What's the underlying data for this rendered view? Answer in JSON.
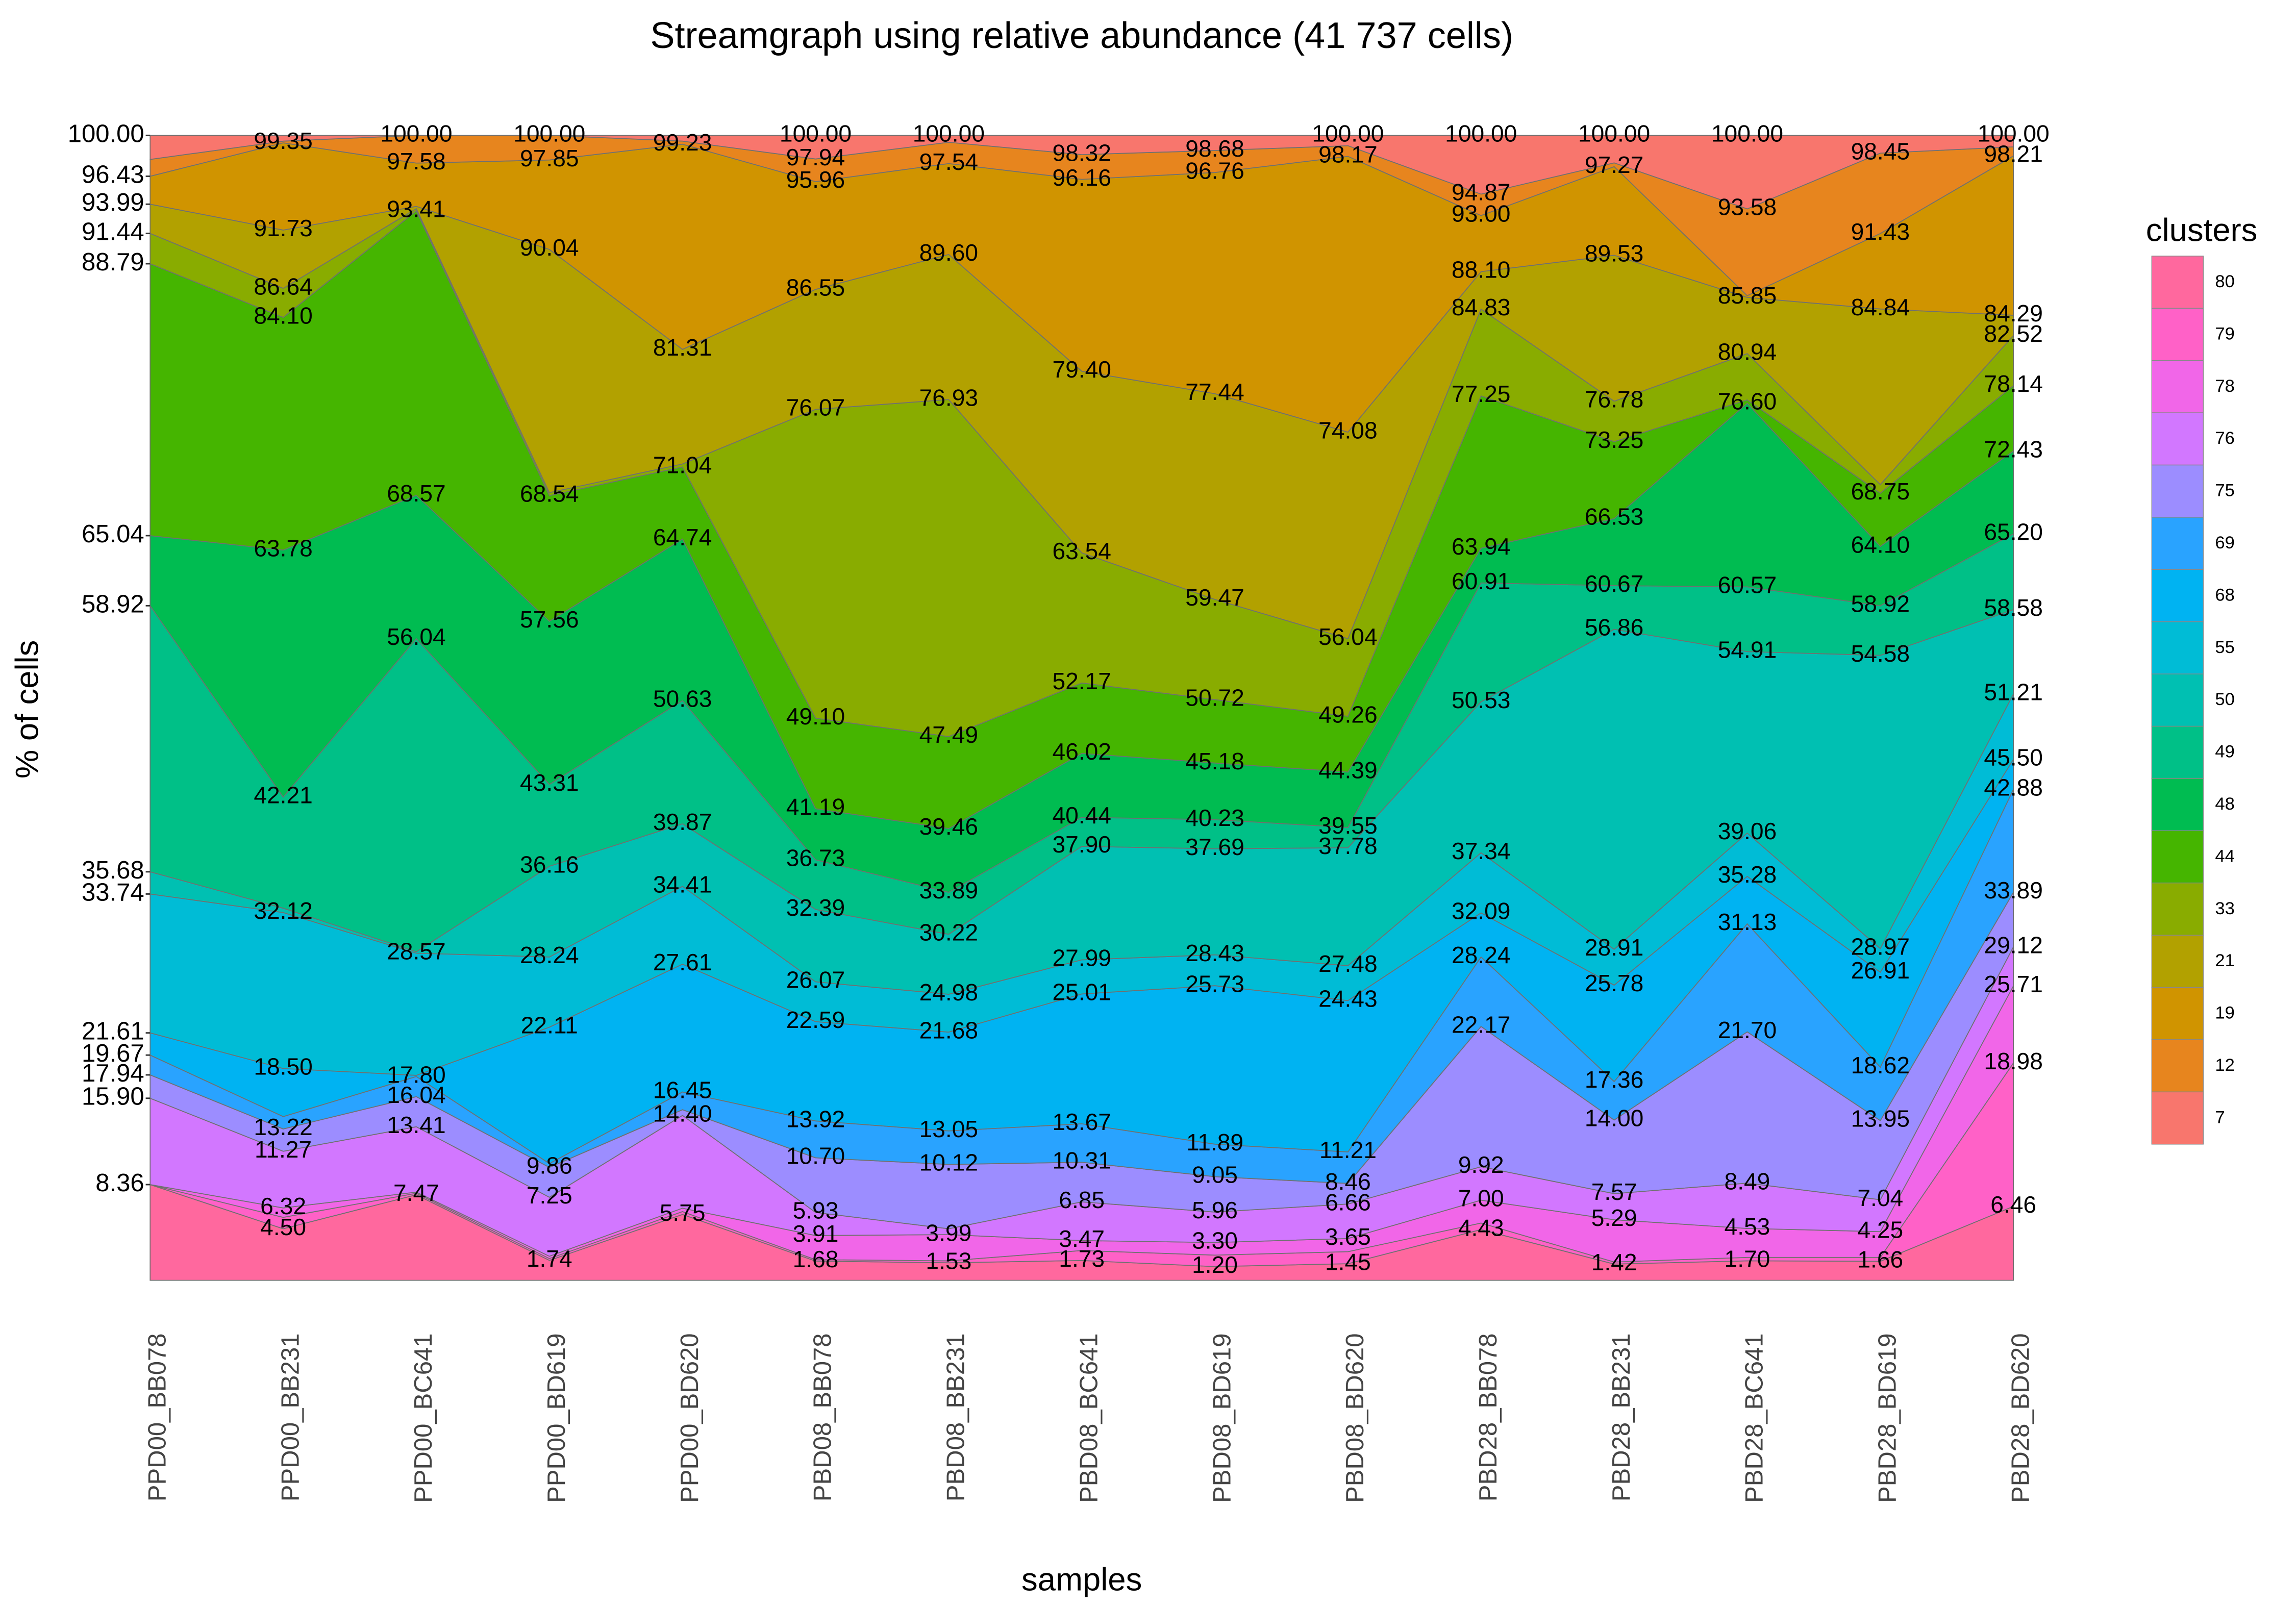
{
  "chart_data": {
    "type": "streamgraph",
    "title": "Streamgraph using relative abundance (41 737 cells)",
    "xlabel": "samples",
    "ylabel": "% of cells",
    "legend_title": "clusters",
    "categories": [
      "PPD00_BB078",
      "PPD00_BB231",
      "PPD00_BC641",
      "PPD00_BD619",
      "PPD00_BD620",
      "PBD08_BB078",
      "PBD08_BB231",
      "PBD08_BC641",
      "PBD08_BD619",
      "PBD08_BD620",
      "PBD28_BB078",
      "PBD28_BB231",
      "PBD28_BC641",
      "PBD28_BD619",
      "PBD28_BD620"
    ],
    "ylim": [
      0,
      100
    ],
    "yticks": [
      8.36,
      {
        "value": 15.9,
        "label": "15.90"
      },
      17.94,
      19.67,
      21.61,
      33.74,
      35.68,
      58.92,
      65.04,
      88.79,
      91.44,
      93.99,
      96.43,
      {
        "value": 100,
        "label": "100.00"
      }
    ],
    "series": [
      {
        "name": "80",
        "color": "#FF689E",
        "values": [
          8.36,
          4.5,
          7.47,
          1.74,
          5.75,
          1.68,
          1.53,
          1.73,
          1.2,
          1.45,
          4.43,
          1.42,
          1.7,
          1.66,
          6.46
        ],
        "value_labels": [
          null,
          "4.50",
          "7.47",
          "1.74",
          "5.75",
          "1.68",
          "1.53",
          "1.73",
          "1.20",
          "1.45",
          "4.43",
          "1.42",
          "1.70",
          "1.66",
          "6.46"
        ]
      },
      {
        "name": "79",
        "color": "#FF61C7",
        "values": [
          8.36,
          5.5,
          7.6,
          1.9,
          6.0,
          1.8,
          1.7,
          2.6,
          2.2,
          2.5,
          5.0,
          1.6,
          2.0,
          2.0,
          18.98
        ],
        "value_labels": [
          null,
          null,
          null,
          null,
          null,
          null,
          null,
          null,
          null,
          null,
          null,
          null,
          null,
          null,
          "18.98"
        ]
      },
      {
        "name": "78",
        "color": "#F166E8",
        "values": [
          8.36,
          6.32,
          7.7,
          2.1,
          6.3,
          3.91,
          3.99,
          3.47,
          3.3,
          3.65,
          7.0,
          5.29,
          4.53,
          4.25,
          25.71
        ],
        "value_labels": [
          null,
          "6.32",
          null,
          null,
          null,
          "3.91",
          "3.99",
          "3.47",
          "3.30",
          "3.65",
          "7.00",
          "5.29",
          "4.53",
          "4.25",
          "25.71"
        ]
      },
      {
        "name": "76",
        "color": "#D277FF",
        "values": [
          15.9,
          11.27,
          13.41,
          7.25,
          14.4,
          5.93,
          4.5,
          6.85,
          5.96,
          6.66,
          9.92,
          7.57,
          8.49,
          7.04,
          29.12
        ],
        "value_labels": [
          null,
          "11.27",
          "13.41",
          "7.25",
          "14.40",
          "5.93",
          null,
          "6.85",
          "5.96",
          "6.66",
          "9.92",
          "7.57",
          "8.49",
          "7.04",
          "29.12"
        ]
      },
      {
        "name": "75",
        "color": "#9C8DFF",
        "values": [
          17.94,
          13.22,
          16.04,
          9.86,
          14.9,
          10.7,
          10.12,
          10.31,
          9.05,
          8.46,
          22.17,
          14.0,
          21.7,
          13.95,
          33.89
        ],
        "value_labels": [
          null,
          "13.22",
          "16.04",
          "9.86",
          null,
          "10.70",
          "10.12",
          "10.31",
          "9.05",
          "8.46",
          "22.17",
          "14.00",
          "21.70",
          "13.95",
          "33.89"
        ]
      },
      {
        "name": "69",
        "color": "#29A3FF",
        "values": [
          19.67,
          14.3,
          17.8,
          10.2,
          16.45,
          13.92,
          13.05,
          13.67,
          11.89,
          11.21,
          28.24,
          17.36,
          31.13,
          18.62,
          42.88
        ],
        "value_labels": [
          null,
          null,
          "17.80",
          null,
          "16.45",
          "13.92",
          "13.05",
          "13.67",
          "11.89",
          "11.21",
          "28.24",
          "17.36",
          "31.13",
          "18.62",
          "42.88"
        ]
      },
      {
        "name": "68",
        "color": "#00B3F2",
        "values": [
          21.61,
          18.5,
          17.9,
          22.11,
          27.61,
          22.59,
          21.68,
          25.01,
          25.73,
          24.43,
          32.09,
          25.78,
          35.28,
          26.91,
          45.5
        ],
        "value_labels": [
          null,
          "18.50",
          null,
          "22.11",
          "27.61",
          "22.59",
          "21.68",
          "25.01",
          "25.73",
          "24.43",
          "32.09",
          "25.78",
          "35.28",
          "26.91",
          "45.50"
        ]
      },
      {
        "name": "55",
        "color": "#00BCD6",
        "values": [
          33.74,
          32.12,
          28.57,
          28.24,
          34.41,
          26.07,
          24.98,
          27.99,
          28.43,
          27.48,
          37.34,
          28.91,
          39.06,
          28.97,
          51.21
        ],
        "value_labels": [
          null,
          "32.12",
          "28.57",
          "28.24",
          "34.41",
          "26.07",
          "24.98",
          "27.99",
          "28.43",
          "27.48",
          "37.34",
          "28.91",
          "39.06",
          "28.97",
          "51.21"
        ]
      },
      {
        "name": "50",
        "color": "#00C0B2",
        "values": [
          35.68,
          32.5,
          28.7,
          36.16,
          39.87,
          32.39,
          30.22,
          37.9,
          37.69,
          37.78,
          50.53,
          56.86,
          54.91,
          54.58,
          58.58
        ],
        "value_labels": [
          null,
          null,
          null,
          "36.16",
          "39.87",
          "32.39",
          "30.22",
          "37.90",
          "37.69",
          "37.78",
          "50.53",
          "56.86",
          "54.91",
          "54.58",
          "58.58"
        ]
      },
      {
        "name": "49",
        "color": "#00C087",
        "values": [
          58.92,
          42.21,
          56.04,
          43.31,
          50.63,
          36.73,
          33.89,
          40.44,
          40.23,
          39.55,
          60.91,
          60.67,
          60.57,
          58.92,
          65.2
        ],
        "value_labels": [
          null,
          "42.21",
          "56.04",
          "43.31",
          "50.63",
          "36.73",
          "33.89",
          "40.44",
          "40.23",
          "39.55",
          "60.91",
          "60.67",
          "60.57",
          "58.92",
          "65.20"
        ]
      },
      {
        "name": "48",
        "color": "#00BC51",
        "values": [
          65.04,
          63.78,
          68.57,
          57.56,
          64.74,
          41.19,
          39.46,
          46.02,
          45.18,
          44.39,
          63.94,
          66.53,
          76.6,
          64.1,
          72.43
        ],
        "value_labels": [
          null,
          "63.78",
          "68.57",
          "57.56",
          "64.74",
          "41.19",
          "39.46",
          "46.02",
          "45.18",
          "44.39",
          "63.94",
          "66.53",
          "76.60",
          "64.10",
          "72.43"
        ]
      },
      {
        "name": "44",
        "color": "#45B500",
        "values": [
          88.79,
          84.1,
          93.41,
          68.54,
          71.04,
          49.1,
          47.49,
          52.17,
          50.72,
          49.26,
          77.25,
          73.25,
          76.9,
          68.75,
          78.14
        ],
        "value_labels": [
          null,
          "84.10",
          "93.41",
          "68.54",
          "71.04",
          "49.10",
          "47.49",
          "52.17",
          "50.72",
          "49.26",
          "77.25",
          "73.25",
          null,
          "68.75",
          "78.14"
        ]
      },
      {
        "name": "33",
        "color": "#89AC00",
        "values": [
          91.44,
          86.64,
          93.6,
          68.8,
          71.3,
          76.07,
          76.93,
          63.54,
          59.47,
          56.04,
          84.83,
          76.78,
          80.94,
          69.5,
          82.52
        ],
        "value_labels": [
          null,
          "86.64",
          null,
          null,
          null,
          "76.07",
          "76.93",
          "63.54",
          "59.47",
          "56.04",
          "84.83",
          "76.78",
          "80.94",
          null,
          "82.52"
        ]
      },
      {
        "name": "21",
        "color": "#B2A100",
        "values": [
          93.99,
          91.73,
          93.8,
          90.04,
          81.31,
          86.55,
          89.6,
          79.4,
          77.44,
          74.08,
          88.1,
          89.53,
          85.85,
          84.84,
          84.29
        ],
        "value_labels": [
          null,
          "91.73",
          null,
          "90.04",
          "81.31",
          "86.55",
          "89.60",
          "79.40",
          "77.44",
          "74.08",
          "88.10",
          "89.53",
          "85.85",
          "84.84",
          "84.29"
        ]
      },
      {
        "name": "19",
        "color": "#D09400",
        "values": [
          96.43,
          99.35,
          97.58,
          97.85,
          99.23,
          95.96,
          97.54,
          96.16,
          96.76,
          98.17,
          93.0,
          97.27,
          86.0,
          91.43,
          98.21
        ],
        "value_labels": [
          null,
          "99.35",
          "97.58",
          "97.85",
          "99.23",
          "95.96",
          "97.54",
          "96.16",
          "96.76",
          "98.17",
          "93.00",
          "97.27",
          null,
          "91.43",
          "98.21"
        ]
      },
      {
        "name": "12",
        "color": "#E7851E",
        "values": [
          97.9,
          99.5,
          100,
          100,
          99.5,
          97.94,
          99.4,
          98.32,
          98.68,
          99.1,
          94.87,
          97.6,
          93.58,
          98.45,
          99.0
        ],
        "value_labels": [
          null,
          null,
          null,
          null,
          null,
          "97.94",
          null,
          "98.32",
          "98.68",
          null,
          "94.87",
          null,
          "93.58",
          "98.45",
          null
        ]
      },
      {
        "name": "7",
        "color": "#F8766D",
        "values": [
          100,
          100,
          100,
          100,
          100,
          100,
          100,
          100,
          100,
          100,
          100,
          100,
          100,
          100,
          100
        ],
        "value_labels": [
          null,
          null,
          "100.00",
          "100.00",
          null,
          "100.00",
          "100.00",
          null,
          null,
          "100.00",
          "100.00",
          "100.00",
          "100.00",
          null,
          "100.00"
        ]
      }
    ]
  }
}
